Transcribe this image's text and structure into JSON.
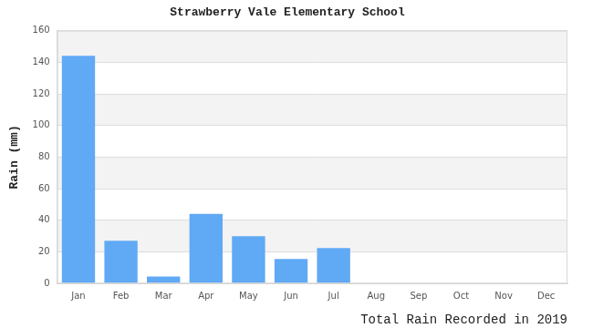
{
  "chart_data": {
    "type": "bar",
    "title": "Strawberry Vale Elementary School",
    "x_label": "Total Rain Recorded in 2019",
    "y_label": "Rain (mm)",
    "categories": [
      "Jan",
      "Feb",
      "Mar",
      "Apr",
      "May",
      "Jun",
      "Jul",
      "Aug",
      "Sep",
      "Oct",
      "Nov",
      "Dec"
    ],
    "values": [
      144,
      27,
      4.5,
      44,
      30,
      15.5,
      22.5,
      0,
      0,
      0,
      0,
      0
    ],
    "color": "#60a9f5",
    "ylim": [
      0,
      160
    ],
    "yticks": [
      0,
      20,
      40,
      60,
      80,
      100,
      120,
      140,
      160
    ],
    "grid": true
  }
}
